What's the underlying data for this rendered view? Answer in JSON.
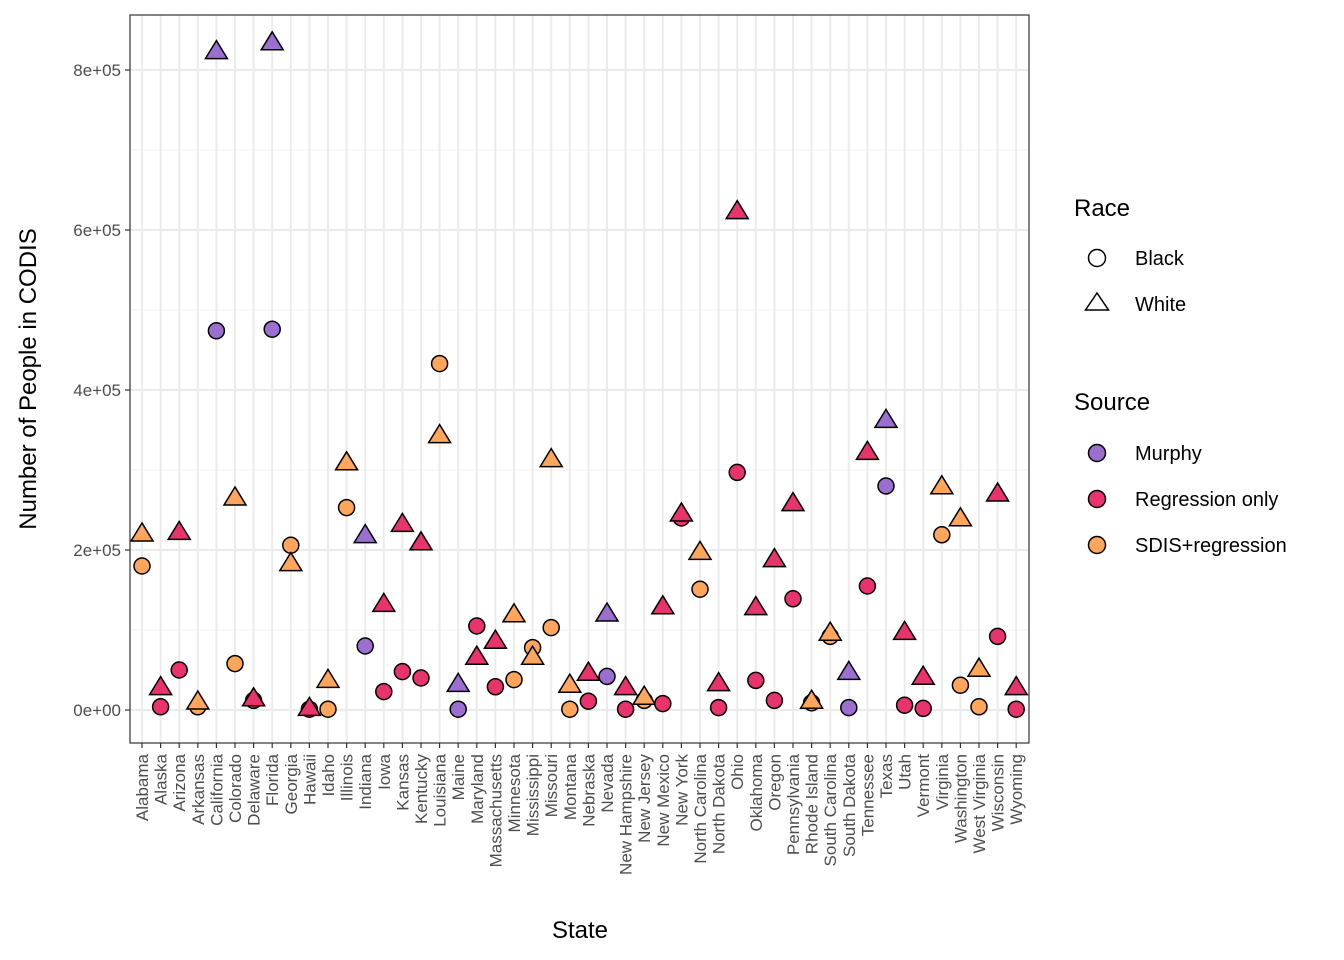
{
  "chart_data": {
    "type": "scatter",
    "xlabel": "State",
    "ylabel": "Number of People in CODIS",
    "ylim": [
      -40000,
      870000
    ],
    "yticks": [
      0,
      200000,
      400000,
      600000,
      800000
    ],
    "ytick_labels": [
      "0e+00",
      "2e+05",
      "4e+05",
      "6e+05",
      "8e+05"
    ],
    "grid": true,
    "legend_placement": "right",
    "categories": [
      "Alabama",
      "Alaska",
      "Arizona",
      "Arkansas",
      "California",
      "Colorado",
      "Delaware",
      "Florida",
      "Georgia",
      "Hawaii",
      "Idaho",
      "Illinois",
      "Indiana",
      "Iowa",
      "Kansas",
      "Kentucky",
      "Louisiana",
      "Maine",
      "Maryland",
      "Massachusetts",
      "Minnesota",
      "Mississippi",
      "Missouri",
      "Montana",
      "Nebraska",
      "Nevada",
      "New Hampshire",
      "New Jersey",
      "New Mexico",
      "New York",
      "North Carolina",
      "North Dakota",
      "Ohio",
      "Oklahoma",
      "Oregon",
      "Pennsylvania",
      "Rhode Island",
      "South Carolina",
      "South Dakota",
      "Tennessee",
      "Texas",
      "Utah",
      "Vermont",
      "Virginia",
      "Washington",
      "West Virginia",
      "Wisconsin",
      "Wyoming"
    ],
    "legend": {
      "race": {
        "title": "Race",
        "entries": [
          {
            "label": "Black",
            "shape": "circle"
          },
          {
            "label": "White",
            "shape": "triangle"
          }
        ]
      },
      "source": {
        "title": "Source",
        "entries": [
          {
            "label": "Murphy",
            "color": "#9b6fd0"
          },
          {
            "label": "Regression only",
            "color": "#e8336d"
          },
          {
            "label": "SDIS+regression",
            "color": "#ffa65c"
          }
        ]
      }
    },
    "points": [
      {
        "state": "Alabama",
        "race": "Black",
        "source": "SDIS+regression",
        "value": 180000
      },
      {
        "state": "Alabama",
        "race": "White",
        "source": "SDIS+regression",
        "value": 220000
      },
      {
        "state": "Alaska",
        "race": "Black",
        "source": "Regression only",
        "value": 4000
      },
      {
        "state": "Alaska",
        "race": "White",
        "source": "Regression only",
        "value": 28000
      },
      {
        "state": "Arizona",
        "race": "Black",
        "source": "Regression only",
        "value": 50000
      },
      {
        "state": "Arizona",
        "race": "White",
        "source": "Regression only",
        "value": 222000
      },
      {
        "state": "Arkansas",
        "race": "Black",
        "source": "SDIS+regression",
        "value": 4000
      },
      {
        "state": "Arkansas",
        "race": "White",
        "source": "SDIS+regression",
        "value": 10000
      },
      {
        "state": "California",
        "race": "Black",
        "source": "Murphy",
        "value": 474000
      },
      {
        "state": "California",
        "race": "White",
        "source": "Murphy",
        "value": 823000
      },
      {
        "state": "Colorado",
        "race": "Black",
        "source": "SDIS+regression",
        "value": 58000
      },
      {
        "state": "Colorado",
        "race": "White",
        "source": "SDIS+regression",
        "value": 265000
      },
      {
        "state": "Delaware",
        "race": "Black",
        "source": "Regression only",
        "value": 12000
      },
      {
        "state": "Delaware",
        "race": "White",
        "source": "Regression only",
        "value": 14000
      },
      {
        "state": "Florida",
        "race": "Black",
        "source": "Murphy",
        "value": 476000
      },
      {
        "state": "Florida",
        "race": "White",
        "source": "Murphy",
        "value": 834000
      },
      {
        "state": "Georgia",
        "race": "Black",
        "source": "SDIS+regression",
        "value": 206000
      },
      {
        "state": "Georgia",
        "race": "White",
        "source": "SDIS+regression",
        "value": 183000
      },
      {
        "state": "Hawaii",
        "race": "Black",
        "source": "Regression only",
        "value": 1000
      },
      {
        "state": "Hawaii",
        "race": "White",
        "source": "Regression only",
        "value": 2000
      },
      {
        "state": "Idaho",
        "race": "Black",
        "source": "SDIS+regression",
        "value": 1000
      },
      {
        "state": "Idaho",
        "race": "White",
        "source": "SDIS+regression",
        "value": 37000
      },
      {
        "state": "Illinois",
        "race": "Black",
        "source": "SDIS+regression",
        "value": 253000
      },
      {
        "state": "Illinois",
        "race": "White",
        "source": "SDIS+regression",
        "value": 309000
      },
      {
        "state": "Indiana",
        "race": "Black",
        "source": "Murphy",
        "value": 80000
      },
      {
        "state": "Indiana",
        "race": "White",
        "source": "Murphy",
        "value": 218000
      },
      {
        "state": "Iowa",
        "race": "Black",
        "source": "Regression only",
        "value": 23000
      },
      {
        "state": "Iowa",
        "race": "White",
        "source": "Regression only",
        "value": 132000
      },
      {
        "state": "Kansas",
        "race": "Black",
        "source": "Regression only",
        "value": 48000
      },
      {
        "state": "Kansas",
        "race": "White",
        "source": "Regression only",
        "value": 232000
      },
      {
        "state": "Kentucky",
        "race": "Black",
        "source": "Regression only",
        "value": 40000
      },
      {
        "state": "Kentucky",
        "race": "White",
        "source": "Regression only",
        "value": 209000
      },
      {
        "state": "Louisiana",
        "race": "Black",
        "source": "SDIS+regression",
        "value": 433000
      },
      {
        "state": "Louisiana",
        "race": "White",
        "source": "SDIS+regression",
        "value": 343000
      },
      {
        "state": "Maine",
        "race": "Black",
        "source": "Murphy",
        "value": 1000
      },
      {
        "state": "Maine",
        "race": "White",
        "source": "Murphy",
        "value": 32000
      },
      {
        "state": "Maryland",
        "race": "Black",
        "source": "Regression only",
        "value": 105000
      },
      {
        "state": "Maryland",
        "race": "White",
        "source": "Regression only",
        "value": 66000
      },
      {
        "state": "Massachusetts",
        "race": "Black",
        "source": "Regression only",
        "value": 29000
      },
      {
        "state": "Massachusetts",
        "race": "White",
        "source": "Regression only",
        "value": 86000
      },
      {
        "state": "Minnesota",
        "race": "Black",
        "source": "SDIS+regression",
        "value": 38000
      },
      {
        "state": "Minnesota",
        "race": "White",
        "source": "SDIS+regression",
        "value": 119000
      },
      {
        "state": "Mississippi",
        "race": "Black",
        "source": "SDIS+regression",
        "value": 78000
      },
      {
        "state": "Mississippi",
        "race": "White",
        "source": "SDIS+regression",
        "value": 66000
      },
      {
        "state": "Missouri",
        "race": "Black",
        "source": "SDIS+regression",
        "value": 103000
      },
      {
        "state": "Missouri",
        "race": "White",
        "source": "SDIS+regression",
        "value": 313000
      },
      {
        "state": "Montana",
        "race": "Black",
        "source": "SDIS+regression",
        "value": 1000
      },
      {
        "state": "Montana",
        "race": "White",
        "source": "SDIS+regression",
        "value": 31000
      },
      {
        "state": "Nebraska",
        "race": "Black",
        "source": "Regression only",
        "value": 11000
      },
      {
        "state": "Nebraska",
        "race": "White",
        "source": "Regression only",
        "value": 46000
      },
      {
        "state": "Nevada",
        "race": "Black",
        "source": "Murphy",
        "value": 42000
      },
      {
        "state": "Nevada",
        "race": "White",
        "source": "Murphy",
        "value": 120000
      },
      {
        "state": "New Hampshire",
        "race": "Black",
        "source": "Regression only",
        "value": 1000
      },
      {
        "state": "New Hampshire",
        "race": "White",
        "source": "Regression only",
        "value": 28000
      },
      {
        "state": "New Jersey",
        "race": "Black",
        "source": "SDIS+regression",
        "value": 12000
      },
      {
        "state": "New Jersey",
        "race": "White",
        "source": "SDIS+regression",
        "value": 16000
      },
      {
        "state": "New Mexico",
        "race": "Black",
        "source": "Regression only",
        "value": 8000
      },
      {
        "state": "New Mexico",
        "race": "White",
        "source": "Regression only",
        "value": 129000
      },
      {
        "state": "New York",
        "race": "Black",
        "source": "Regression only",
        "value": 240000
      },
      {
        "state": "New York",
        "race": "White",
        "source": "Regression only",
        "value": 245000
      },
      {
        "state": "North Carolina",
        "race": "Black",
        "source": "SDIS+regression",
        "value": 151000
      },
      {
        "state": "North Carolina",
        "race": "White",
        "source": "SDIS+regression",
        "value": 197000
      },
      {
        "state": "North Dakota",
        "race": "Black",
        "source": "Regression only",
        "value": 3000
      },
      {
        "state": "North Dakota",
        "race": "White",
        "source": "Regression only",
        "value": 33000
      },
      {
        "state": "Ohio",
        "race": "Black",
        "source": "Regression only",
        "value": 297000
      },
      {
        "state": "Ohio",
        "race": "White",
        "source": "Regression only",
        "value": 623000
      },
      {
        "state": "Oklahoma",
        "race": "Black",
        "source": "Regression only",
        "value": 37000
      },
      {
        "state": "Oklahoma",
        "race": "White",
        "source": "Regression only",
        "value": 128000
      },
      {
        "state": "Oregon",
        "race": "Black",
        "source": "Regression only",
        "value": 12000
      },
      {
        "state": "Oregon",
        "race": "White",
        "source": "Regression only",
        "value": 188000
      },
      {
        "state": "Pennsylvania",
        "race": "Black",
        "source": "Regression only",
        "value": 139000
      },
      {
        "state": "Pennsylvania",
        "race": "White",
        "source": "Regression only",
        "value": 258000
      },
      {
        "state": "Rhode Island",
        "race": "Black",
        "source": "SDIS+regression",
        "value": 9000
      },
      {
        "state": "Rhode Island",
        "race": "White",
        "source": "SDIS+regression",
        "value": 11000
      },
      {
        "state": "South Carolina",
        "race": "Black",
        "source": "SDIS+regression",
        "value": 92000
      },
      {
        "state": "South Carolina",
        "race": "White",
        "source": "SDIS+regression",
        "value": 96000
      },
      {
        "state": "South Dakota",
        "race": "Black",
        "source": "Murphy",
        "value": 3000
      },
      {
        "state": "South Dakota",
        "race": "White",
        "source": "Murphy",
        "value": 47000
      },
      {
        "state": "Tennessee",
        "race": "Black",
        "source": "Regression only",
        "value": 155000
      },
      {
        "state": "Tennessee",
        "race": "White",
        "source": "Regression only",
        "value": 322000
      },
      {
        "state": "Texas",
        "race": "Black",
        "source": "Murphy",
        "value": 280000
      },
      {
        "state": "Texas",
        "race": "White",
        "source": "Murphy",
        "value": 362000
      },
      {
        "state": "Utah",
        "race": "Black",
        "source": "Regression only",
        "value": 6000
      },
      {
        "state": "Utah",
        "race": "White",
        "source": "Regression only",
        "value": 97000
      },
      {
        "state": "Vermont",
        "race": "Black",
        "source": "Regression only",
        "value": 2000
      },
      {
        "state": "Vermont",
        "race": "White",
        "source": "Regression only",
        "value": 41000
      },
      {
        "state": "Virginia",
        "race": "Black",
        "source": "SDIS+regression",
        "value": 219000
      },
      {
        "state": "Virginia",
        "race": "White",
        "source": "SDIS+regression",
        "value": 279000
      },
      {
        "state": "Washington",
        "race": "Black",
        "source": "SDIS+regression",
        "value": 31000
      },
      {
        "state": "Washington",
        "race": "White",
        "source": "SDIS+regression",
        "value": 239000
      },
      {
        "state": "West Virginia",
        "race": "Black",
        "source": "SDIS+regression",
        "value": 4000
      },
      {
        "state": "West Virginia",
        "race": "White",
        "source": "SDIS+regression",
        "value": 51000
      },
      {
        "state": "Wisconsin",
        "race": "Black",
        "source": "Regression only",
        "value": 92000
      },
      {
        "state": "Wisconsin",
        "race": "White",
        "source": "Regression only",
        "value": 270000
      },
      {
        "state": "Wyoming",
        "race": "Black",
        "source": "Regression only",
        "value": 1000
      },
      {
        "state": "Wyoming",
        "race": "White",
        "source": "Regression only",
        "value": 28000
      }
    ]
  }
}
